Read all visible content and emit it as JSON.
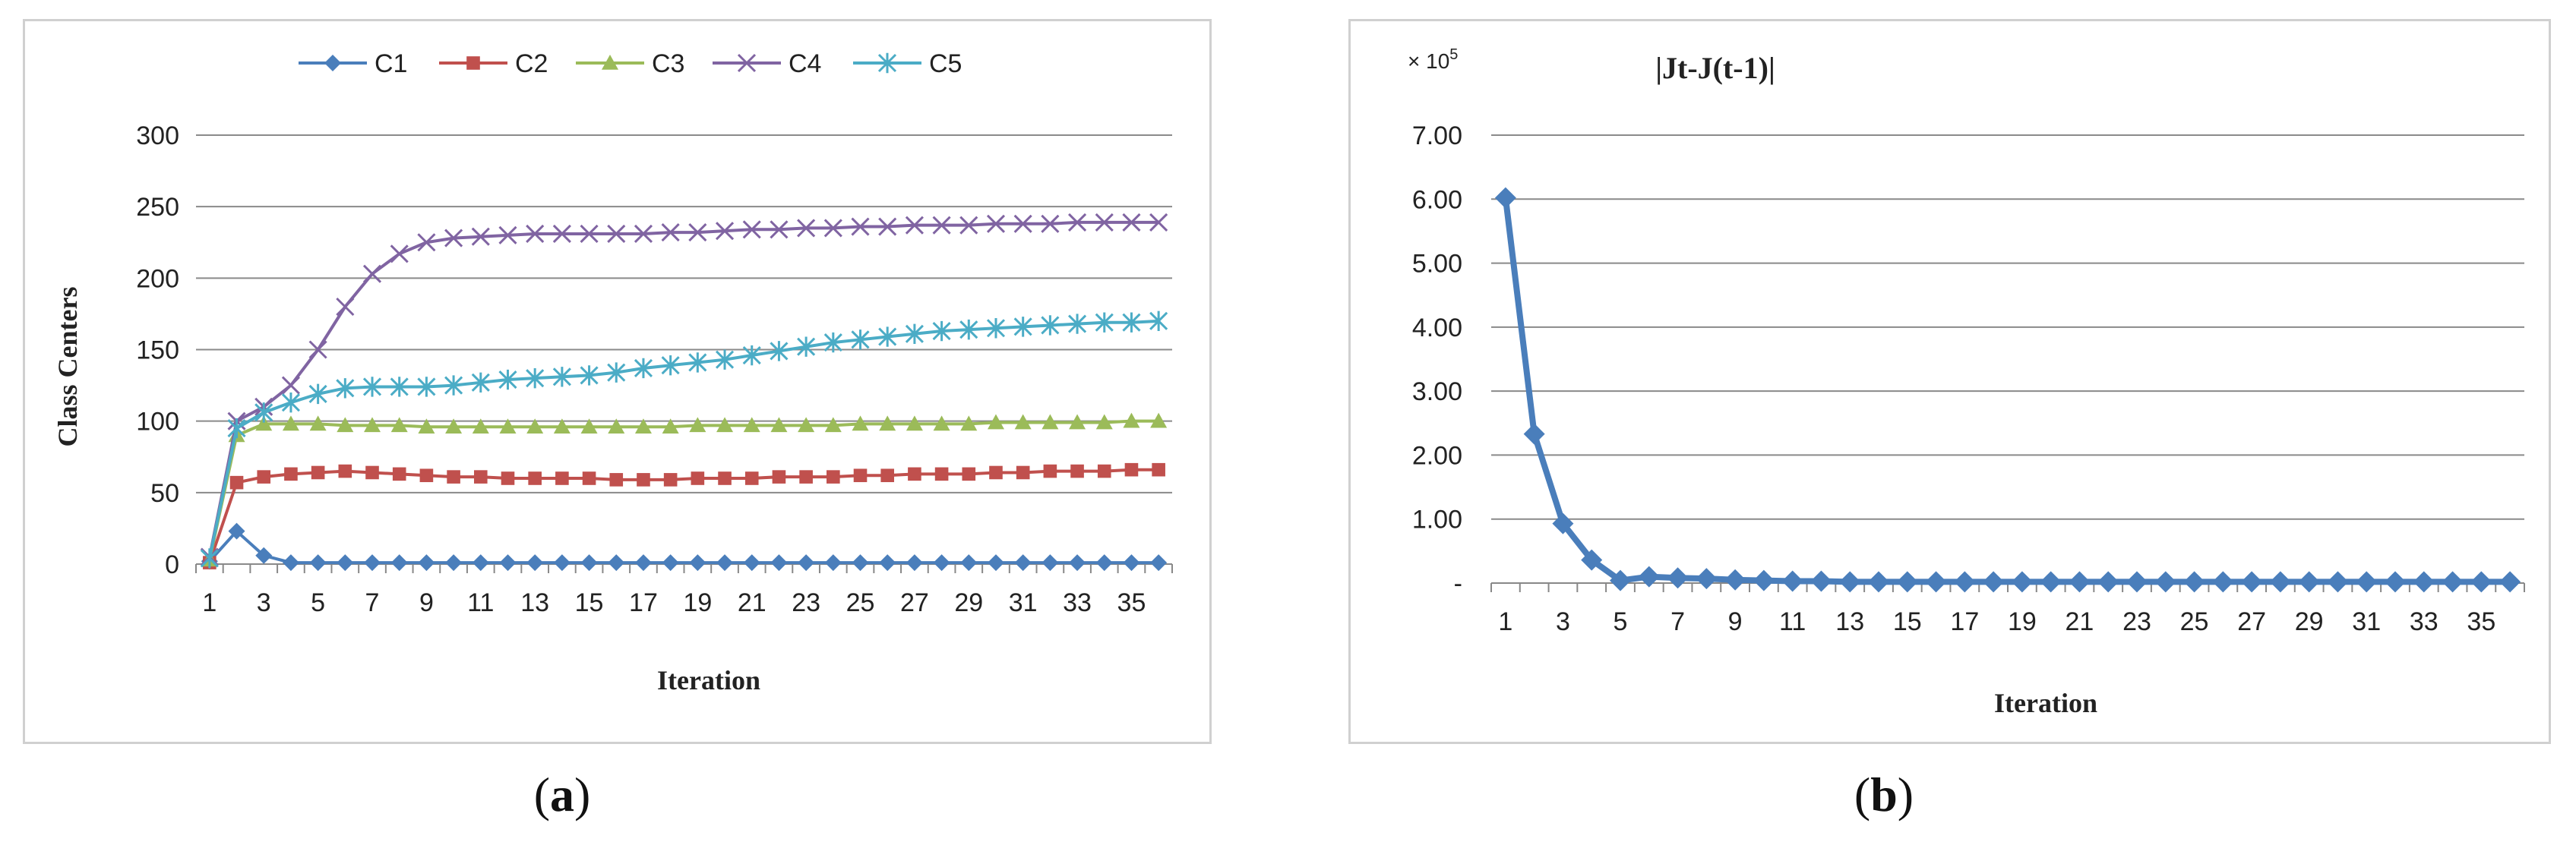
{
  "figure": {
    "panel_a_label": "a",
    "panel_b_label": "b"
  },
  "chart_data": [
    {
      "type": "line",
      "title": "",
      "xlabel": "Iteration",
      "ylabel": "Class Centers",
      "ylim": [
        0,
        300
      ],
      "y_ticks": [
        0,
        50,
        100,
        150,
        200,
        250,
        300
      ],
      "x_tick_labels": [
        "1",
        "3",
        "5",
        "7",
        "9",
        "11",
        "13",
        "15",
        "17",
        "19",
        "21",
        "23",
        "25",
        "27",
        "29",
        "31",
        "33",
        "35"
      ],
      "legend_position": "top",
      "grid": "horizontal",
      "x": [
        1,
        2,
        3,
        4,
        5,
        6,
        7,
        8,
        9,
        10,
        11,
        12,
        13,
        14,
        15,
        16,
        17,
        18,
        19,
        20,
        21,
        22,
        23,
        24,
        25,
        26,
        27,
        28,
        29,
        30,
        31,
        32,
        33,
        34,
        35,
        36
      ],
      "series": [
        {
          "name": "C1",
          "color": "#4a7ebb",
          "marker": "diamond",
          "values": [
            2,
            23,
            6,
            1,
            1,
            1,
            1,
            1,
            1,
            1,
            1,
            1,
            1,
            1,
            1,
            1,
            1,
            1,
            1,
            1,
            1,
            1,
            1,
            1,
            1,
            1,
            1,
            1,
            1,
            1,
            1,
            1,
            1,
            1,
            1,
            1
          ]
        },
        {
          "name": "C2",
          "color": "#c0504d",
          "marker": "square",
          "values": [
            1,
            57,
            61,
            63,
            64,
            65,
            64,
            63,
            62,
            61,
            61,
            60,
            60,
            60,
            60,
            59,
            59,
            59,
            60,
            60,
            60,
            61,
            61,
            61,
            62,
            62,
            63,
            63,
            63,
            64,
            64,
            65,
            65,
            65,
            66,
            66
          ]
        },
        {
          "name": "C3",
          "color": "#9bbb59",
          "marker": "triangle",
          "values": [
            3,
            90,
            98,
            98,
            98,
            97,
            97,
            97,
            96,
            96,
            96,
            96,
            96,
            96,
            96,
            96,
            96,
            96,
            97,
            97,
            97,
            97,
            97,
            97,
            98,
            98,
            98,
            98,
            98,
            99,
            99,
            99,
            99,
            99,
            100,
            100
          ]
        },
        {
          "name": "C4",
          "color": "#8064a2",
          "marker": "x",
          "values": [
            5,
            100,
            110,
            125,
            150,
            180,
            203,
            217,
            225,
            228,
            229,
            230,
            231,
            231,
            231,
            231,
            231,
            232,
            232,
            233,
            234,
            234,
            235,
            235,
            236,
            236,
            237,
            237,
            237,
            238,
            238,
            238,
            239,
            239,
            239,
            239
          ]
        },
        {
          "name": "C5",
          "color": "#4bacc6",
          "marker": "star",
          "values": [
            4,
            95,
            106,
            113,
            119,
            123,
            124,
            124,
            124,
            125,
            127,
            129,
            130,
            131,
            132,
            134,
            137,
            139,
            141,
            143,
            146,
            149,
            152,
            155,
            157,
            159,
            161,
            163,
            164,
            165,
            166,
            167,
            168,
            169,
            169,
            170
          ]
        }
      ]
    },
    {
      "type": "line",
      "title": "|Jt-J(t-1)|",
      "xlabel": "Iteration",
      "ylabel": "",
      "y_multiplier_label": "× 10",
      "y_multiplier_exponent": "5",
      "ylim": [
        0,
        7
      ],
      "y_ticks": [
        0,
        1,
        2,
        3,
        4,
        5,
        6,
        7
      ],
      "y_tick_labels": [
        "-",
        "1.00",
        "2.00",
        "3.00",
        "4.00",
        "5.00",
        "6.00",
        "7.00"
      ],
      "x_tick_labels": [
        "1",
        "3",
        "5",
        "7",
        "9",
        "11",
        "13",
        "15",
        "17",
        "19",
        "21",
        "23",
        "25",
        "27",
        "29",
        "31",
        "33",
        "35"
      ],
      "grid": "horizontal",
      "x": [
        1,
        2,
        3,
        4,
        5,
        6,
        7,
        8,
        9,
        10,
        11,
        12,
        13,
        14,
        15,
        16,
        17,
        18,
        19,
        20,
        21,
        22,
        23,
        24,
        25,
        26,
        27,
        28,
        29,
        30,
        31,
        32,
        33,
        34,
        35,
        36
      ],
      "series": [
        {
          "color": "#4a7ebb",
          "marker": "diamond",
          "values": [
            6.02,
            2.33,
            0.93,
            0.36,
            0.04,
            0.1,
            0.08,
            0.07,
            0.05,
            0.04,
            0.03,
            0.03,
            0.02,
            0.02,
            0.02,
            0.02,
            0.02,
            0.02,
            0.02,
            0.02,
            0.02,
            0.02,
            0.02,
            0.02,
            0.02,
            0.02,
            0.02,
            0.02,
            0.02,
            0.02,
            0.02,
            0.02,
            0.02,
            0.02,
            0.02,
            0.02
          ]
        }
      ]
    }
  ]
}
